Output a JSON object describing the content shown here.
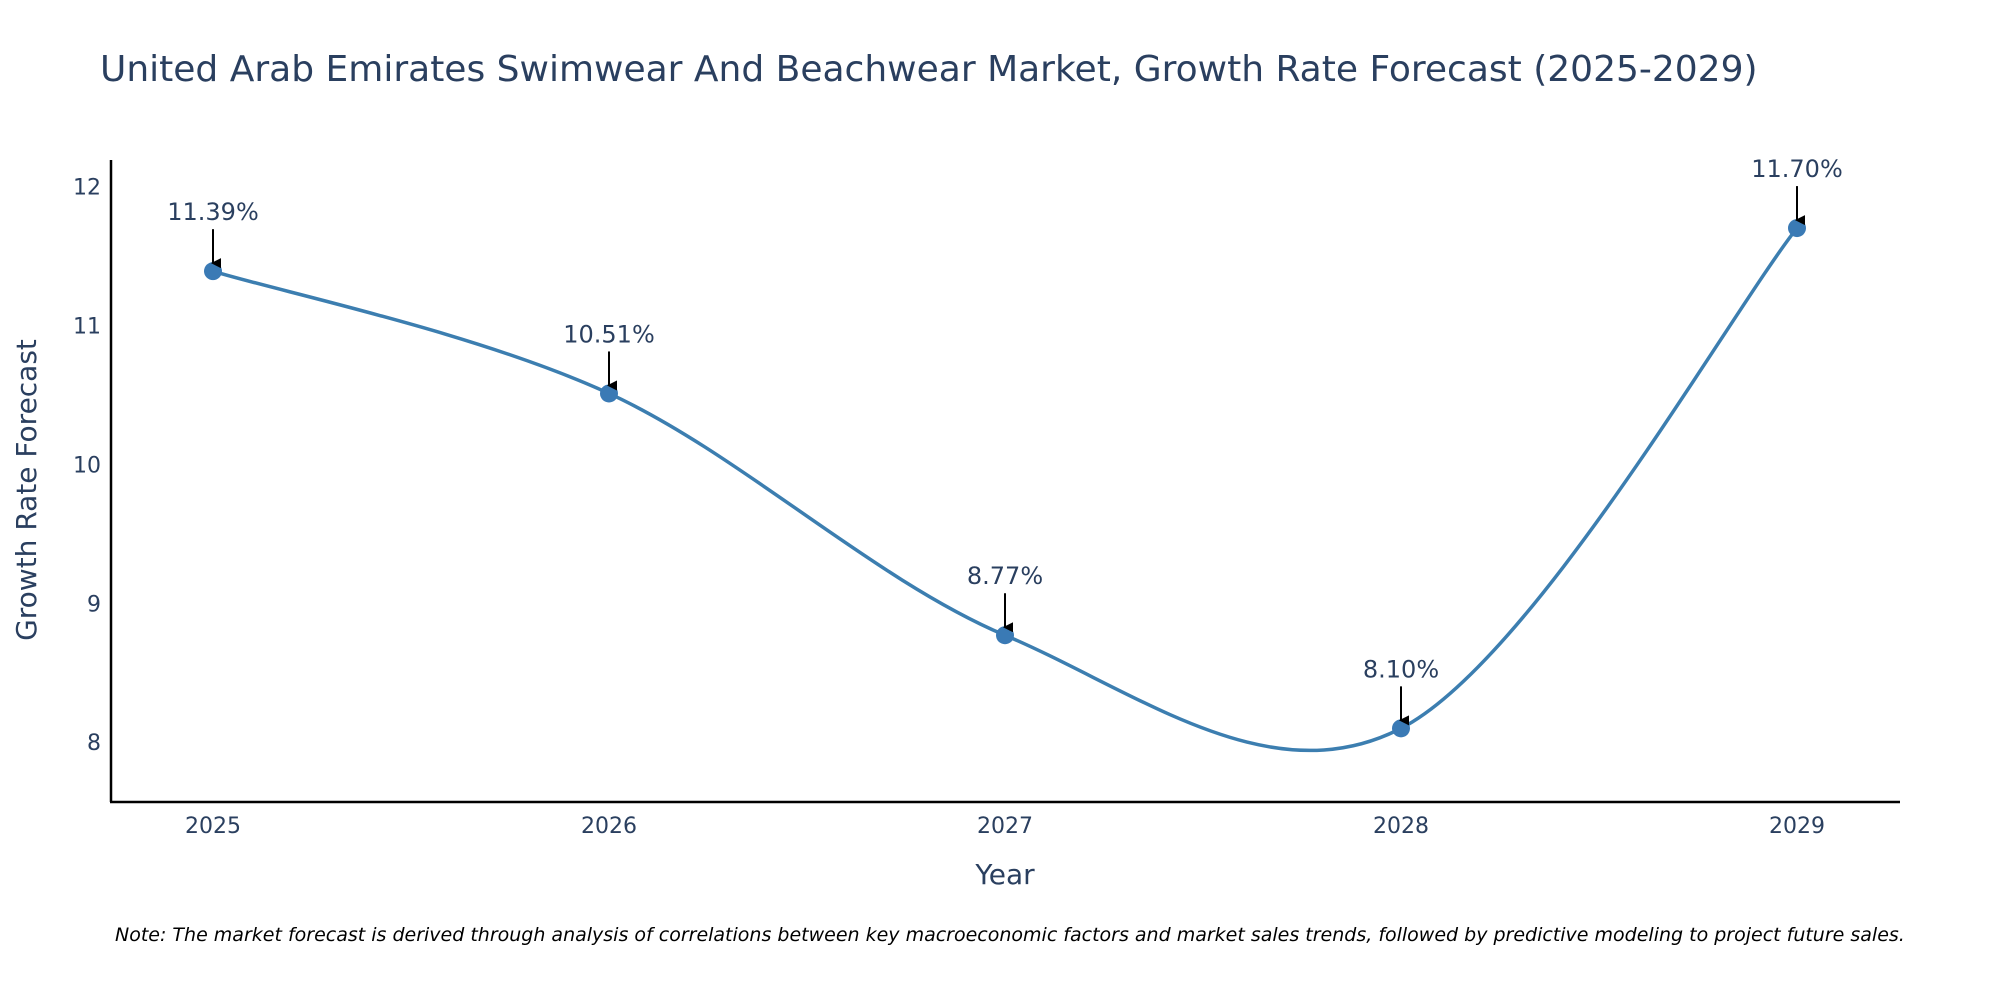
{
  "colors": {
    "line": "#3c7eb0",
    "marker": "#3a7ab5",
    "axis": "#000000",
    "text": "#2a3f5f",
    "arrow": "#000000"
  },
  "chart_data": {
    "type": "line",
    "title": "United Arab Emirates Swimwear And Beachwear Market, Growth Rate Forecast (2025-2029)",
    "xlabel": "Year",
    "ylabel": "Growth Rate Forecast",
    "categories": [
      "2025",
      "2026",
      "2027",
      "2028",
      "2029"
    ],
    "values": [
      11.39,
      10.51,
      8.77,
      8.1,
      11.7
    ],
    "data_labels": [
      "11.39%",
      "10.51%",
      "8.77%",
      "8.10%",
      "11.70%"
    ],
    "yticks": [
      8,
      9,
      10,
      11,
      12
    ],
    "ytick_labels": [
      "8",
      "9",
      "10",
      "11",
      "12"
    ],
    "ylim": [
      7.57,
      12.19
    ],
    "grid": false,
    "smoothing": "spline",
    "note": "Note: The market forecast is derived through analysis of correlations between key macroeconomic factors and market sales trends, followed by predictive modeling to project future sales."
  }
}
